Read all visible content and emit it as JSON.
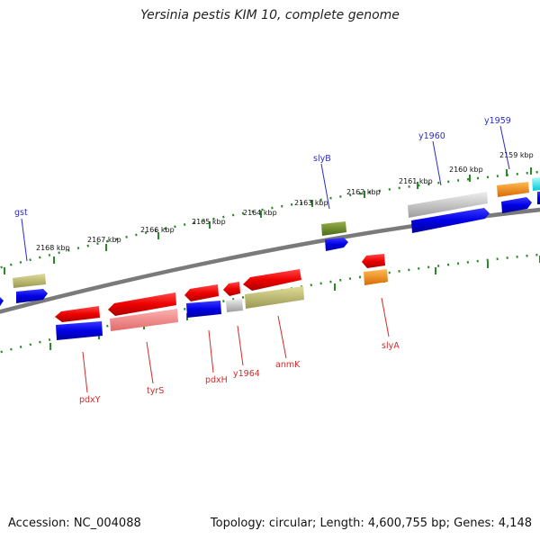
{
  "title": "Yersinia pestis KIM 10, complete genome",
  "footer": {
    "accession": "Accession: NC_004088",
    "summary": "Topology: circular; Length: 4,600,755 bp; Genes: 4,148"
  },
  "colors": {
    "backbone": "#7a7a7a",
    "dots": "#2a8a2a",
    "plus_label": "#2b2bc8",
    "minus_label": "#d42a2a"
  },
  "scale": {
    "unit": "kbp",
    "ticks": [
      "2159 kbp",
      "2160 kbp",
      "2161 kbp",
      "2162 kbp",
      "2163 kbp",
      "2164 kbp",
      "2165 kbp",
      "2166 kbp",
      "2167 kbp",
      "2168 kbp"
    ]
  },
  "gene_labels": {
    "plus": [
      "y1959",
      "y1960",
      "slyB",
      "gst"
    ],
    "minus": [
      "slyA",
      "anmK",
      "y1964",
      "pdxH",
      "tyrS",
      "pdxY"
    ]
  }
}
